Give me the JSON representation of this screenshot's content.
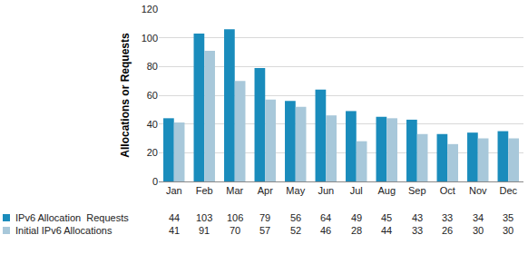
{
  "chart_data": {
    "type": "bar",
    "y_label": "Allocations or Requests",
    "categories": [
      "Jan",
      "Feb",
      "Mar",
      "Apr",
      "May",
      "Jun",
      "Jul",
      "Aug",
      "Sep",
      "Oct",
      "Nov",
      "Dec"
    ],
    "series": [
      {
        "name": "IPv6 Allocation  Requests",
        "color": "#1a8cbc",
        "values": [
          44,
          103,
          106,
          79,
          56,
          64,
          49,
          45,
          43,
          33,
          34,
          35
        ]
      },
      {
        "name": "Initial IPv6 Allocations",
        "color": "#a8c8da",
        "values": [
          41,
          91,
          70,
          57,
          52,
          46,
          28,
          44,
          33,
          26,
          30,
          30
        ]
      }
    ],
    "ylim": [
      0,
      120
    ],
    "yticks": [
      0,
      20,
      40,
      60,
      80,
      100,
      120
    ],
    "grid": true,
    "data_labels": true
  }
}
